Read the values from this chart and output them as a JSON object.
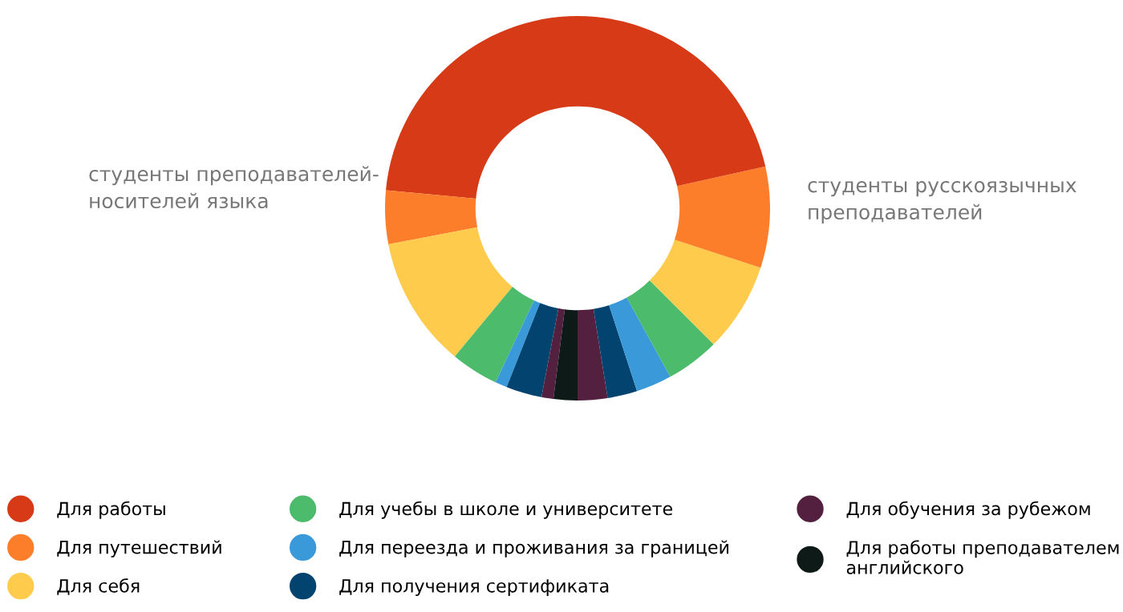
{
  "chart_data": {
    "type": "donut",
    "legend": "bottom",
    "annotations": [
      "студенты преподавателей-\nносителей языка",
      "студенты русскоязычных\nпреподавателей"
    ],
    "categories": [
      "Для работы",
      "Для путешествий",
      "Для себя",
      "Для учебы в школе и университете",
      "Для переезда и проживания за границей",
      "Для получения сертификата",
      "Для обучения за рубежом",
      "Для работы преподавателем\nанглийского",
      null,
      null,
      null,
      null,
      null,
      null,
      null
    ],
    "values": [
      23.5,
      4.5,
      11,
      4,
      1,
      3,
      1,
      2,
      2.5,
      2.5,
      3,
      4.5,
      7.5,
      8.5,
      21.5
    ],
    "colors": [
      "#d63a16",
      "#fd7e2a",
      "#fecb4d",
      "#4dbb6c",
      "#3a9ad9",
      "#02446f",
      "#53213f",
      "#0d1a17",
      "#53213f",
      "#02446f",
      "#3a9ad9",
      "#4dbb6c",
      "#fecb4d",
      "#fd7e2a",
      "#d63a16"
    ]
  }
}
